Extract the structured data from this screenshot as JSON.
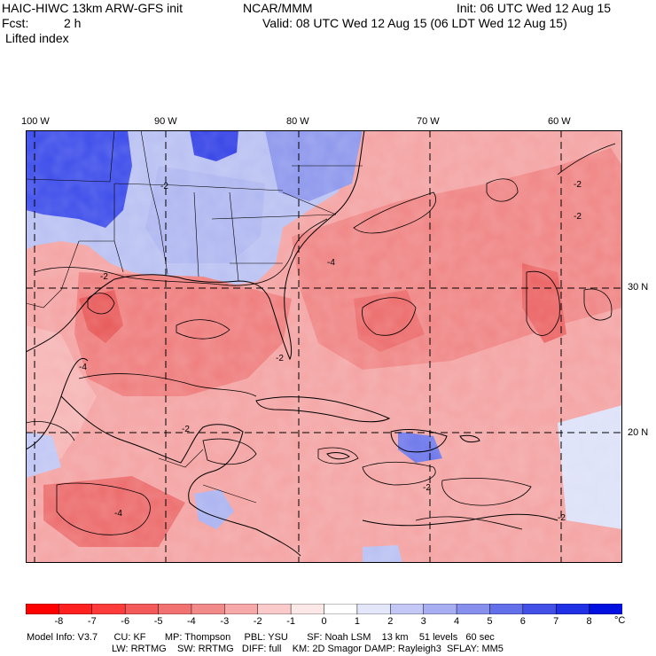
{
  "header": {
    "model": "HAIC-HIWC 13km ARW-GFS init",
    "org": "NCAR/MMM",
    "init": "Init: 06 UTC Wed 12 Aug 15",
    "fcst_label": "Fcst:",
    "fcst_value": "2 h",
    "valid": "Valid: 08 UTC Wed 12 Aug 15 (06 LDT Wed 12 Aug 15)",
    "field": "Lifted index"
  },
  "map": {
    "lon_labels": [
      "100 W",
      "90 W",
      "80 W",
      "70 W",
      "60 W"
    ],
    "lat_labels": [
      "30 N",
      "20 N"
    ],
    "contour_labels": [
      "-2",
      "-2",
      "-2",
      "-4",
      "-2",
      "-2",
      "-2",
      "-4",
      "-2",
      "-2",
      "-4"
    ]
  },
  "legend": {
    "labels": [
      "-8",
      "-7",
      "-6",
      "-5",
      "-4",
      "-3",
      "-2",
      "-1",
      "0",
      "1",
      "2",
      "3",
      "4",
      "5",
      "6",
      "7",
      "8"
    ],
    "unit": "°C",
    "colors": [
      "#ff0000",
      "#ff2020",
      "#ff3c3c",
      "#f45a5a",
      "#f27272",
      "#f38a8a",
      "#f7a8a8",
      "#fbcaca",
      "#fde8e8",
      "#ffffff",
      "#e4e6fa",
      "#c4c8f6",
      "#a8aef2",
      "#8890ee",
      "#6470ea",
      "#4250e8",
      "#2030e4",
      "#0010e0"
    ]
  },
  "footer": {
    "line1": "Model Info: V3.7      CU: KF       MP: Thompson     PBL: YSU       SF: Noah LSM    13 km    51 levels   60 sec",
    "line2": "LW: RRTMG    SW: RRTMG   DIFF: full    KM: 2D Smagor DAMP: Rayleigh3  SFLAY: MM5"
  }
}
